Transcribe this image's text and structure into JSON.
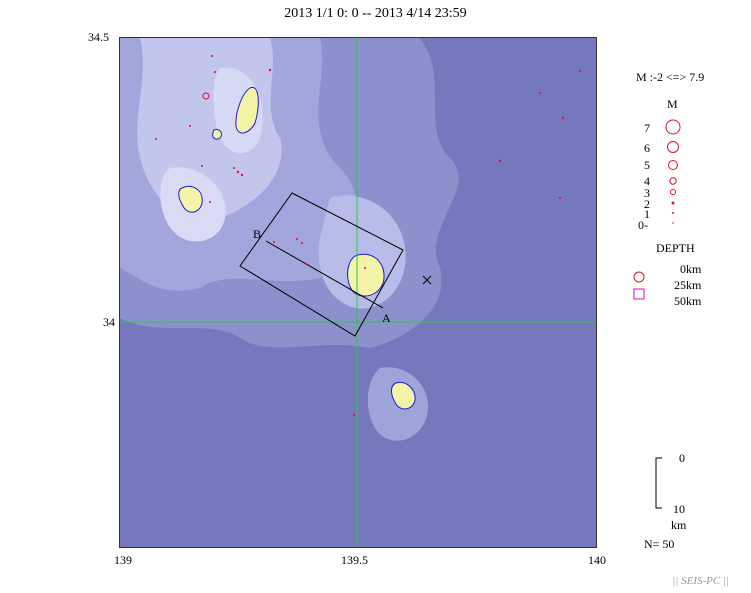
{
  "header": {
    "title": "2013 1/1 0: 0 -- 2013 4/14 23:59"
  },
  "axes": {
    "lat_top": "34.5",
    "lat_mid": "34",
    "lon_left": "139",
    "lon_mid": "139.5",
    "lon_right": "140"
  },
  "section": {
    "label_a": "A",
    "label_b": "B"
  },
  "legend": {
    "range": "M :-2 <=> 7.9",
    "m_title": "M",
    "magnitudes": [
      "7",
      "6",
      "5",
      "4",
      "3",
      "2",
      "1",
      "0-"
    ],
    "depth_title": "DEPTH",
    "depths": [
      "0km",
      "25km",
      "50km"
    ],
    "scale_top": "0",
    "scale_bottom": "10",
    "scale_unit": "km",
    "count": "N= 50"
  },
  "colors": {
    "sea_deep": "#6f72b8",
    "sea_mid": "#8a8fcc",
    "sea_shallow": "#b3b8e6",
    "shelf": "#dcdff5",
    "land": "#f4f4a8",
    "coast": "#1a1acc",
    "grid": "#2ecc40",
    "event": "#e0102a",
    "deep_event": "#d010c0"
  },
  "footer": {
    "credit": "|| SEIS-PC ||"
  }
}
